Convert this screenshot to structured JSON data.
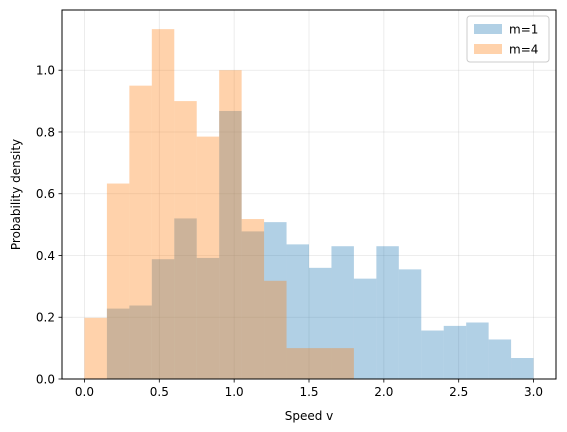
{
  "chart_data": {
    "type": "bar",
    "xlabel": "Speed v",
    "ylabel": "Probability density",
    "xlim": [
      -0.15,
      3.15
    ],
    "ylim": [
      0,
      1.195
    ],
    "xticks": [
      0.0,
      0.5,
      1.0,
      1.5,
      2.0,
      2.5,
      3.0
    ],
    "xtick_labels": [
      "0.0",
      "0.5",
      "1.0",
      "1.5",
      "2.0",
      "2.5",
      "3.0"
    ],
    "yticks": [
      0.0,
      0.2,
      0.4,
      0.6,
      0.8,
      1.0
    ],
    "ytick_labels": [
      "0.0",
      "0.2",
      "0.4",
      "0.6",
      "0.8",
      "1.0"
    ],
    "grid": true,
    "legend_position": "top-right",
    "series": [
      {
        "name": "m=1",
        "color": "#1f77b4",
        "opacity": 0.35,
        "bin_edges": [
          0.15,
          0.3,
          0.45,
          0.6,
          0.75,
          0.9,
          1.05,
          1.2,
          1.35,
          1.5,
          1.65,
          1.8,
          1.95,
          2.1,
          2.25,
          2.4,
          2.55,
          2.7,
          2.85,
          3.0
        ],
        "values": [
          0.228,
          0.238,
          0.388,
          0.52,
          0.392,
          0.868,
          0.478,
          0.508,
          0.436,
          0.36,
          0.43,
          0.325,
          0.43,
          0.355,
          0.157,
          0.172,
          0.183,
          0.128,
          0.068
        ]
      },
      {
        "name": "m=4",
        "color": "#ff7f0e",
        "opacity": 0.35,
        "bin_edges": [
          0.0,
          0.15,
          0.3,
          0.45,
          0.6,
          0.75,
          0.9,
          1.05,
          1.2,
          1.35,
          1.5,
          1.65,
          1.8,
          1.95
        ],
        "values": [
          0.198,
          0.633,
          0.95,
          1.133,
          0.9,
          0.785,
          1.0,
          0.518,
          0.318,
          0.1,
          0.1,
          0.1,
          0.0
        ]
      }
    ]
  }
}
